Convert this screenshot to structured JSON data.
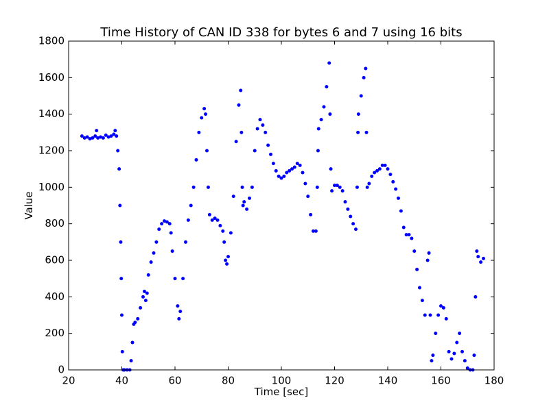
{
  "chart_data": {
    "type": "scatter",
    "title": "Time History of CAN ID 338 for bytes 6 and 7 using 16 bits",
    "x_label": "Time [sec]",
    "y_label": "Value",
    "xlim": [
      20,
      180
    ],
    "xticks": [
      20,
      40,
      60,
      80,
      100,
      120,
      140,
      160,
      180
    ],
    "ylim": [
      0,
      1800
    ],
    "yticks": [
      0,
      200,
      400,
      600,
      800,
      1000,
      1200,
      1400,
      1600,
      1800
    ],
    "color": "#0000ff",
    "x": [
      25,
      26,
      27,
      28,
      29,
      30,
      30.5,
      31,
      32,
      33,
      34,
      35,
      36,
      37,
      37.5,
      38,
      38.5,
      39,
      39.3,
      39.6,
      39.8,
      40,
      40.2,
      40.5,
      41,
      42,
      43,
      43.5,
      44,
      44.5,
      45,
      46,
      47,
      48,
      48.5,
      49,
      49.5,
      50,
      51,
      52,
      53,
      54,
      55,
      56,
      57,
      58,
      58.5,
      59,
      60,
      61,
      61.5,
      62,
      63,
      64,
      65,
      66,
      67,
      68,
      69,
      70,
      71,
      71.5,
      72,
      72.5,
      73,
      74,
      75,
      76,
      77,
      78,
      78.5,
      79,
      79.5,
      80,
      81,
      82,
      83,
      84,
      84.7,
      85,
      85.3,
      85.6,
      86,
      87,
      88,
      89,
      90,
      91,
      92,
      93,
      94,
      95,
      96,
      97,
      98,
      99,
      100,
      101,
      102,
      103,
      104,
      105,
      106,
      107,
      108,
      109,
      110,
      111,
      112,
      113,
      113.5,
      113.8,
      114,
      115,
      116,
      117,
      118,
      118.3,
      118.6,
      119,
      120,
      121,
      122,
      123,
      124,
      125,
      126,
      127,
      128,
      128.5,
      128.8,
      129,
      130,
      131,
      131.7,
      132,
      132.3,
      133,
      134,
      135,
      136,
      137,
      138,
      139,
      140,
      141,
      142,
      143,
      144,
      145,
      146,
      147,
      148,
      149,
      150,
      151,
      152,
      153,
      154,
      155,
      155.5,
      156,
      156.5,
      157,
      158,
      159,
      160,
      161,
      162,
      163,
      164,
      165,
      166,
      167,
      168,
      169,
      170,
      171,
      172,
      172.5,
      173,
      173.5,
      174,
      175,
      176
    ],
    "values": [
      1280,
      1270,
      1275,
      1265,
      1270,
      1280,
      1310,
      1270,
      1275,
      1270,
      1285,
      1275,
      1280,
      1290,
      1310,
      1280,
      1200,
      1100,
      900,
      700,
      500,
      300,
      100,
      0,
      0,
      0,
      0,
      50,
      150,
      250,
      260,
      280,
      340,
      400,
      430,
      380,
      420,
      520,
      590,
      640,
      700,
      770,
      800,
      815,
      810,
      800,
      750,
      650,
      500,
      350,
      280,
      320,
      500,
      700,
      820,
      900,
      1000,
      1150,
      1300,
      1380,
      1430,
      1400,
      1200,
      1000,
      850,
      820,
      830,
      820,
      790,
      760,
      700,
      600,
      580,
      620,
      750,
      950,
      1250,
      1450,
      1530,
      1300,
      1000,
      900,
      920,
      880,
      940,
      1000,
      1200,
      1320,
      1370,
      1340,
      1300,
      1230,
      1180,
      1130,
      1090,
      1060,
      1050,
      1060,
      1080,
      1090,
      1100,
      1110,
      1130,
      1120,
      1080,
      1020,
      950,
      850,
      760,
      760,
      1000,
      1200,
      1320,
      1370,
      1440,
      1550,
      1680,
      1400,
      1100,
      980,
      1010,
      1010,
      1000,
      980,
      920,
      880,
      840,
      800,
      770,
      1000,
      1300,
      1400,
      1500,
      1600,
      1650,
      1300,
      1000,
      1020,
      1060,
      1080,
      1090,
      1100,
      1120,
      1120,
      1100,
      1070,
      1030,
      990,
      940,
      870,
      780,
      740,
      740,
      720,
      650,
      550,
      450,
      380,
      300,
      600,
      640,
      300,
      50,
      80,
      200,
      300,
      350,
      340,
      280,
      100,
      60,
      90,
      150,
      200,
      100,
      50,
      10,
      0,
      0,
      80,
      400,
      650,
      620,
      590,
      610
    ]
  }
}
